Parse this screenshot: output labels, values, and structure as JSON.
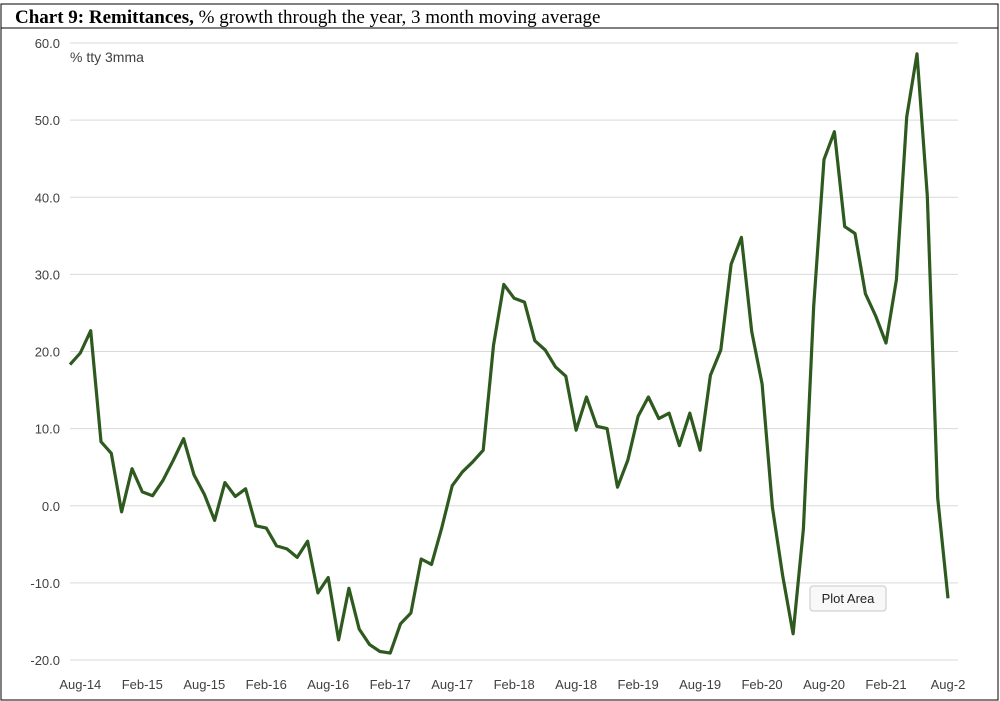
{
  "chart_data": {
    "type": "line",
    "title_bold": "Chart 9: Remittances,",
    "title": "% growth through the year, 3 month moving average",
    "annotation": "% tty 3mma",
    "tooltip": "Plot Area",
    "categories": [
      null,
      "Aug-14",
      null,
      null,
      null,
      null,
      null,
      "Feb-15",
      null,
      null,
      null,
      null,
      null,
      "Aug-15",
      null,
      null,
      null,
      null,
      null,
      "Feb-16",
      null,
      null,
      null,
      null,
      null,
      "Aug-16",
      null,
      null,
      null,
      null,
      null,
      "Feb-17",
      null,
      null,
      null,
      null,
      null,
      "Aug-17",
      null,
      null,
      null,
      null,
      null,
      "Feb-18",
      null,
      null,
      null,
      null,
      null,
      "Aug-18",
      null,
      null,
      null,
      null,
      null,
      "Feb-19",
      null,
      null,
      null,
      null,
      null,
      "Aug-19",
      null,
      null,
      null,
      null,
      null,
      "Feb-20",
      null,
      null,
      null,
      null,
      null,
      "Aug-20",
      null,
      null,
      null,
      null,
      null,
      "Feb-21",
      null,
      null,
      null,
      null,
      null,
      "Aug-2"
    ],
    "values": [
      18.3,
      19.8,
      22.7,
      8.3,
      6.8,
      -0.8,
      4.8,
      1.8,
      1.3,
      3.3,
      5.9,
      8.7,
      4.0,
      1.5,
      -1.9,
      3.0,
      1.2,
      2.2,
      -2.6,
      -2.9,
      -5.2,
      -5.6,
      -6.7,
      -4.6,
      -11.3,
      -9.3,
      -17.4,
      -10.7,
      -16.0,
      -18.0,
      -18.9,
      -19.1,
      -15.3,
      -13.9,
      -6.9,
      -7.6,
      -2.8,
      2.6,
      4.4,
      5.7,
      7.2,
      20.8,
      28.7,
      26.9,
      26.4,
      21.4,
      20.2,
      18.0,
      16.8,
      9.8,
      14.1,
      10.3,
      10.0,
      2.4,
      5.9,
      11.6,
      14.1,
      11.3,
      12.0,
      7.8,
      12.0,
      7.2,
      16.9,
      20.2,
      31.3,
      34.8,
      22.6,
      15.8,
      -0.2,
      -9.1,
      -16.6,
      -3.0,
      25.9,
      44.9,
      48.5,
      36.2,
      35.3,
      27.5,
      24.6,
      21.1,
      29.3,
      50.4,
      58.6,
      40.2,
      1.0,
      -12.0
    ],
    "color": "#2f5a1f",
    "ylim": [
      -20,
      60
    ],
    "yticks": [
      {
        "value": -20,
        "label": "-20.0"
      },
      {
        "value": -10,
        "label": "-10.0"
      },
      {
        "value": 0,
        "label": "0.0"
      },
      {
        "value": 10,
        "label": "10.0"
      },
      {
        "value": 20,
        "label": "20.0"
      },
      {
        "value": 30,
        "label": "30.0"
      },
      {
        "value": 40,
        "label": "40.0"
      },
      {
        "value": 50,
        "label": "50.0"
      },
      {
        "value": 60,
        "label": "60.0"
      }
    ],
    "grid": true
  }
}
